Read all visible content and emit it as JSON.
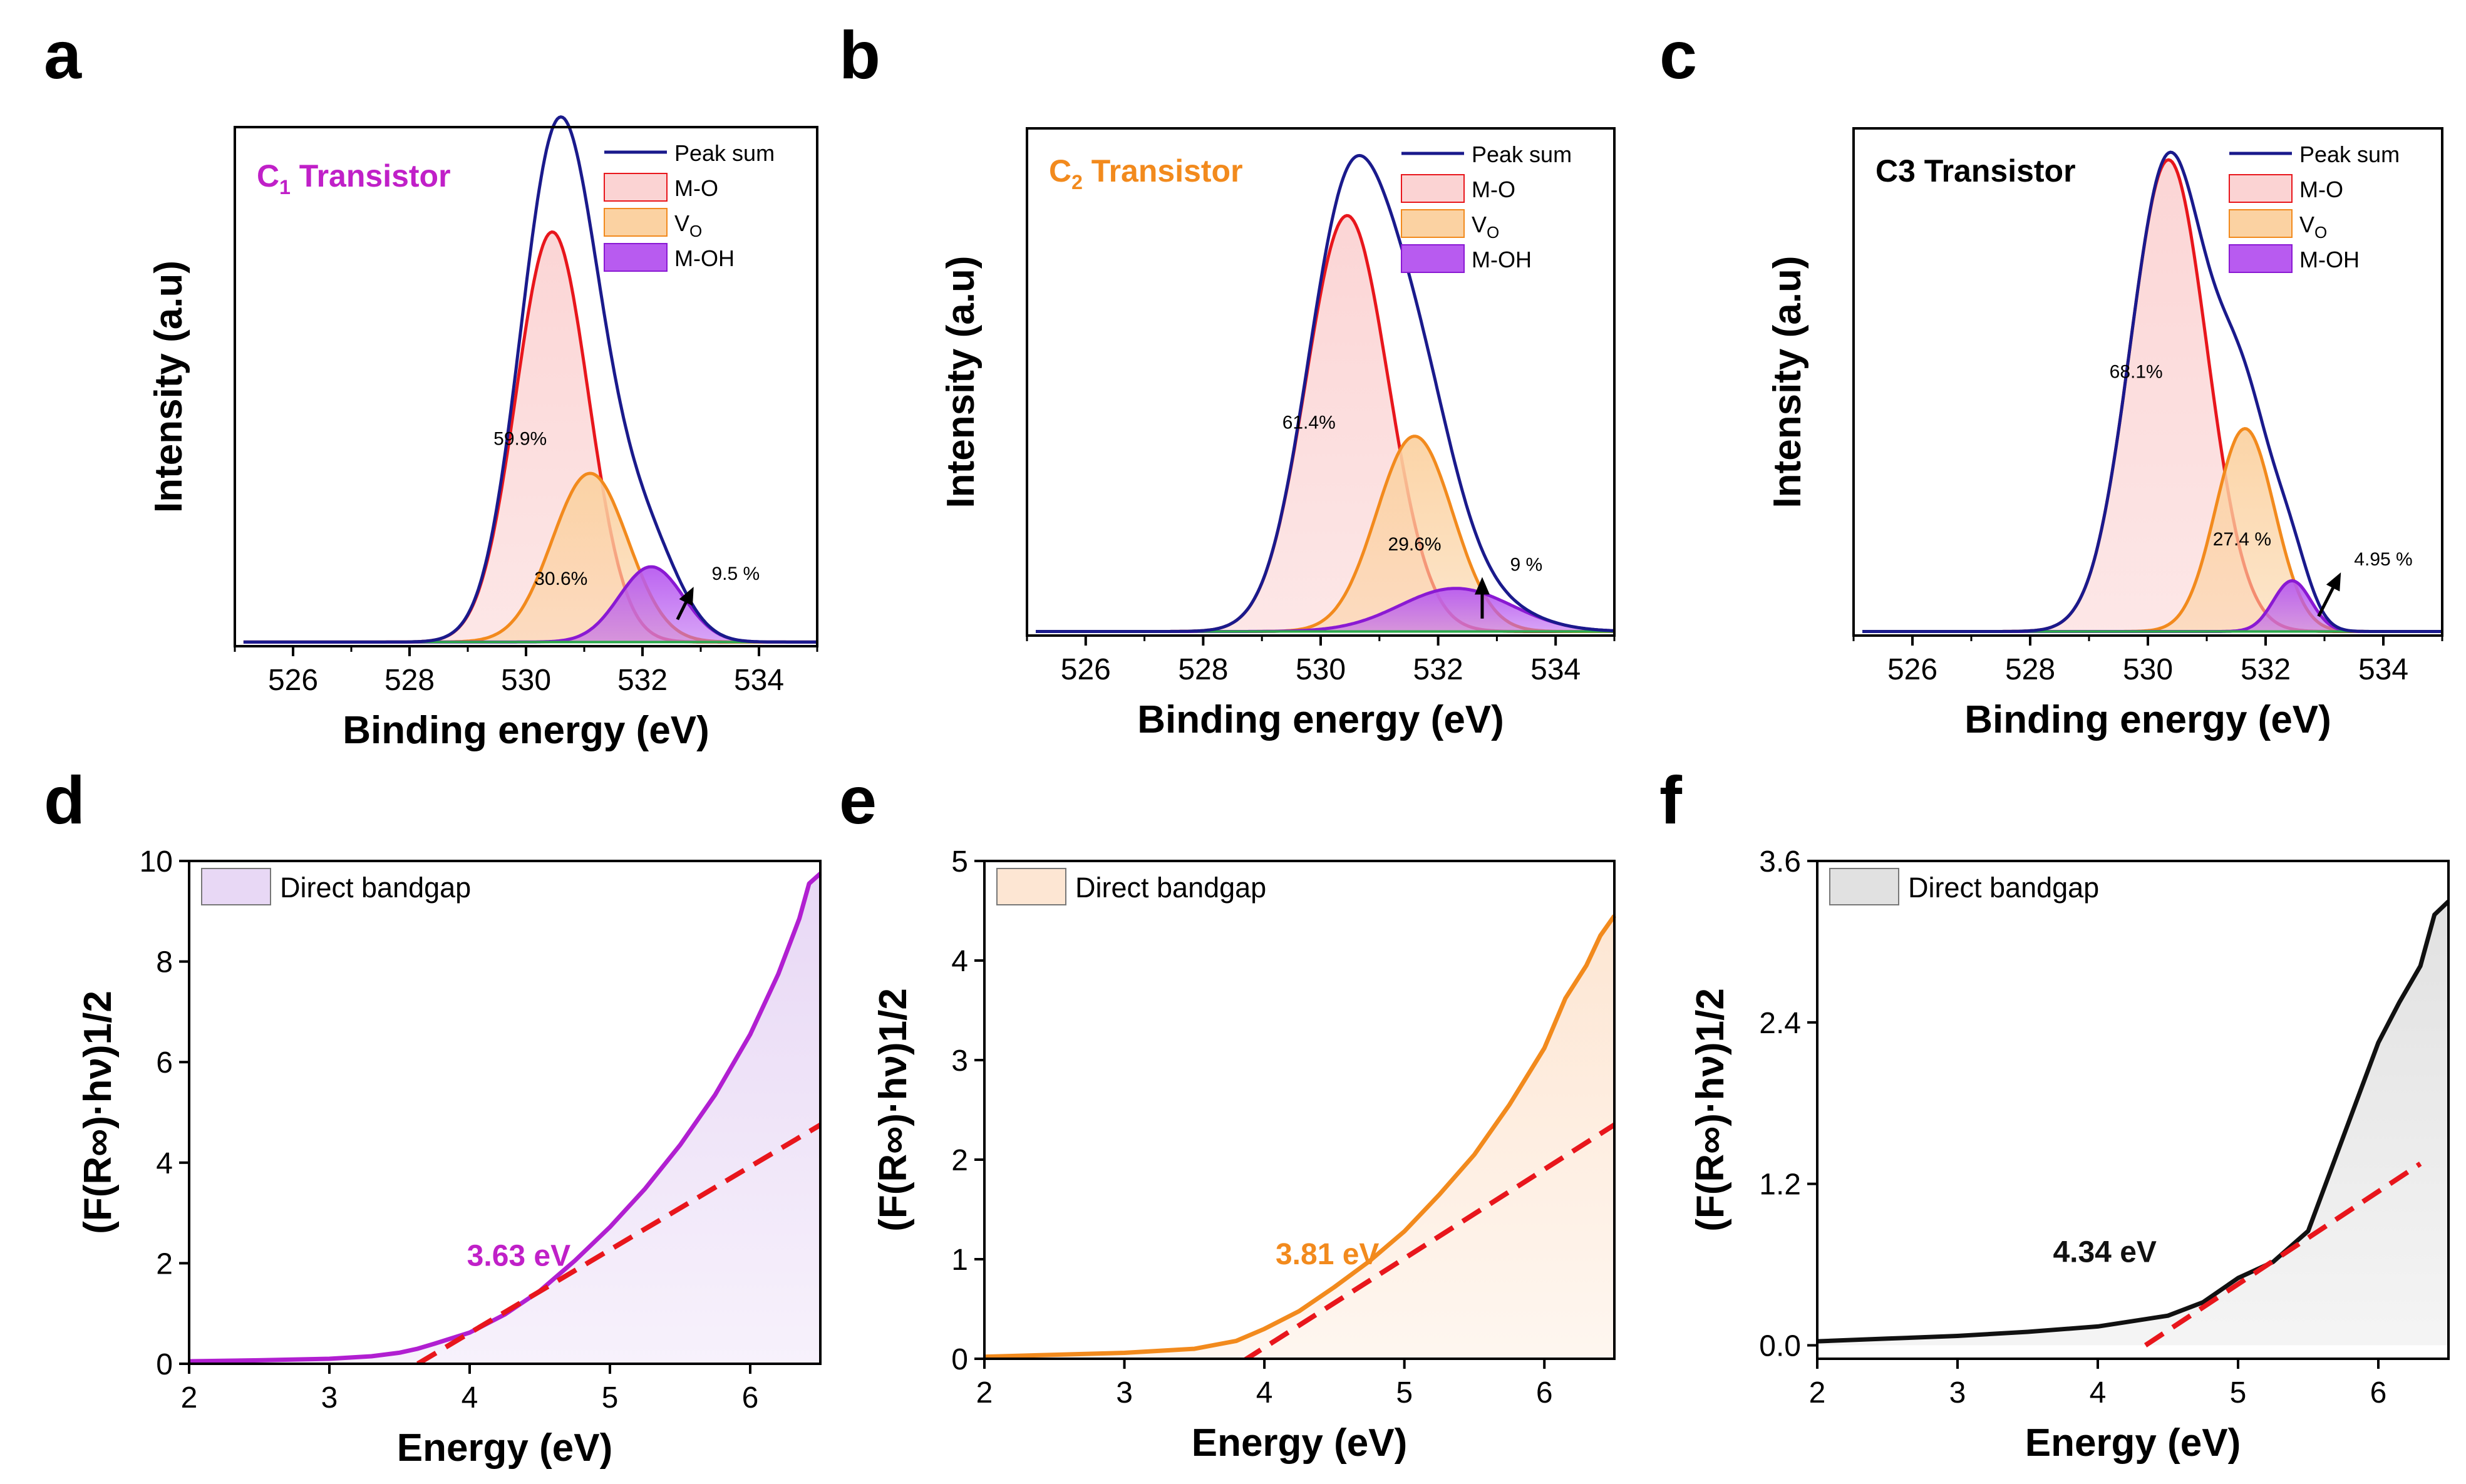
{
  "chart_data": [
    {
      "panel": "a",
      "type": "line",
      "title": "C",
      "title_sub": "1",
      "title_rest": " Transistor",
      "title_color": "#c020c8",
      "xlabel": "Binding energy (eV)",
      "ylabel": "Intensity (a.u)",
      "xlim": [
        525,
        535
      ],
      "ylim": [
        0,
        1.0
      ],
      "xticks": [
        526,
        528,
        530,
        532,
        534
      ],
      "components": [
        {
          "name": "M-O",
          "center": 530.45,
          "sigma": 0.62,
          "amp": 0.79,
          "color": "#e8161c",
          "fill": "#fbd3d3",
          "percent_label": "59.9%",
          "label_x": 529.9,
          "label_y": 0.38
        },
        {
          "name": "V",
          "sub": "O",
          "center": 531.1,
          "sigma": 0.65,
          "amp": 0.325,
          "color": "#f28a1d",
          "fill": "#fbd2a2",
          "percent_label": "30.6%",
          "label_x": 530.6,
          "label_y": 0.11
        },
        {
          "name": "M-OH",
          "center": 532.15,
          "sigma": 0.55,
          "amp": 0.145,
          "color": "#8a19d3",
          "fill": "#b85bf0",
          "percent_label": "9.5 %",
          "label_x": 533.6,
          "label_y": 0.12
        }
      ],
      "legend": [
        "Peak sum",
        "M-O",
        "V",
        "M-OH"
      ],
      "legend_sub": {
        "V": "O"
      }
    },
    {
      "panel": "b",
      "type": "line",
      "title": "C",
      "title_sub": "2",
      "title_rest": " Transistor",
      "title_color": "#f28a1d",
      "xlabel": "Binding energy (eV)",
      "ylabel": "Intensity (a.u)",
      "xlim": [
        525,
        535
      ],
      "ylim": [
        0,
        1.0
      ],
      "xticks": [
        526,
        528,
        530,
        532,
        534
      ],
      "components": [
        {
          "name": "M-O",
          "center": 530.45,
          "sigma": 0.7,
          "amp": 0.82,
          "color": "#e8161c",
          "fill": "#fbd3d3",
          "percent_label": "61.4%",
          "label_x": 529.8,
          "label_y": 0.4
        },
        {
          "name": "V",
          "sub": "O",
          "center": 531.6,
          "sigma": 0.65,
          "amp": 0.385,
          "color": "#f28a1d",
          "fill": "#fbd2a2",
          "percent_label": "29.6%",
          "label_x": 531.6,
          "label_y": 0.16
        },
        {
          "name": "M-OH",
          "center": 532.3,
          "sigma": 0.95,
          "amp": 0.085,
          "color": "#8a19d3",
          "fill": "#b85bf0",
          "percent_label": "9 %",
          "label_x": 533.5,
          "label_y": 0.12
        }
      ],
      "legend": [
        "Peak sum",
        "M-O",
        "V",
        "M-OH"
      ],
      "legend_sub": {
        "V": "O"
      }
    },
    {
      "panel": "c",
      "type": "line",
      "title": "C3 Transistor",
      "title_sub": "",
      "title_rest": "",
      "title_color": "#000000",
      "xlabel": "Binding energy (eV)",
      "ylabel": "Intensity (a.u)",
      "xlim": [
        525,
        535
      ],
      "ylim": [
        0,
        1.0
      ],
      "xticks": [
        526,
        528,
        530,
        532,
        534
      ],
      "components": [
        {
          "name": "M-O",
          "center": 530.35,
          "sigma": 0.65,
          "amp": 0.93,
          "color": "#e8161c",
          "fill": "#fbd3d3",
          "percent_label": "68.1%",
          "label_x": 529.8,
          "label_y": 0.5
        },
        {
          "name": "V",
          "sub": "O",
          "center": 531.65,
          "sigma": 0.5,
          "amp": 0.4,
          "color": "#f28a1d",
          "fill": "#fbd2a2",
          "percent_label": "27.4 %",
          "label_x": 531.6,
          "label_y": 0.17
        },
        {
          "name": "M-OH",
          "center": 532.45,
          "sigma": 0.32,
          "amp": 0.1,
          "color": "#8a19d3",
          "fill": "#b85bf0",
          "percent_label": "4.95 %",
          "label_x": 534.0,
          "label_y": 0.13
        }
      ],
      "legend": [
        "Peak sum",
        "M-O",
        "V",
        "M-OH"
      ],
      "legend_sub": {
        "V": "O"
      }
    },
    {
      "panel": "d",
      "type": "area",
      "xlabel": "Energy (eV)",
      "ylabel": "(F(R∞)·hν)1/2",
      "xlim": [
        2,
        6.5
      ],
      "ylim": [
        0,
        10
      ],
      "xticks": [
        2,
        3,
        4,
        5,
        6
      ],
      "yticks": [
        0,
        2,
        4,
        6,
        8,
        10
      ],
      "ytick_labels": [
        "0",
        "2",
        "4",
        "6",
        "8",
        "10"
      ],
      "color": "#b11fd1",
      "fill": "#e8d8f5",
      "legend": "Direct bandgap",
      "bandgap_label": "3.63 eV",
      "bandgap_color": "#c020c8",
      "label_at": [
        4.35,
        1.95
      ],
      "x": [
        2.0,
        2.5,
        3.0,
        3.3,
        3.5,
        3.63,
        3.75,
        4.0,
        4.25,
        4.5,
        4.75,
        5.0,
        5.25,
        5.5,
        5.75,
        6.0,
        6.2,
        6.35,
        6.42,
        6.5
      ],
      "y": [
        0.05,
        0.07,
        0.1,
        0.15,
        0.22,
        0.3,
        0.4,
        0.62,
        0.98,
        1.45,
        2.05,
        2.72,
        3.48,
        4.35,
        5.35,
        6.55,
        7.75,
        8.85,
        9.55,
        9.75
      ],
      "fit_line": {
        "x": [
          3.63,
          6.5
        ],
        "y": [
          0.0,
          4.75
        ]
      }
    },
    {
      "panel": "e",
      "type": "area",
      "xlabel": "Energy (eV)",
      "ylabel": "(F(R∞)·hν)1/2",
      "xlim": [
        2,
        6.5
      ],
      "ylim": [
        0,
        5
      ],
      "xticks": [
        2,
        3,
        4,
        5,
        6
      ],
      "yticks": [
        0,
        1,
        2,
        3,
        4,
        5
      ],
      "ytick_labels": [
        "0",
        "1",
        "2",
        "3",
        "4",
        "5"
      ],
      "color": "#f28a1d",
      "fill": "#fde6d3",
      "legend": "Direct bandgap",
      "bandgap_label": "3.81 eV",
      "bandgap_color": "#f28a1d",
      "label_at": [
        4.45,
        0.95
      ],
      "x": [
        2.0,
        2.5,
        3.0,
        3.5,
        3.8,
        4.0,
        4.25,
        4.5,
        4.75,
        5.0,
        5.25,
        5.5,
        5.75,
        6.0,
        6.15,
        6.3,
        6.4,
        6.5
      ],
      "y": [
        0.02,
        0.04,
        0.06,
        0.1,
        0.18,
        0.3,
        0.48,
        0.72,
        0.98,
        1.28,
        1.65,
        2.05,
        2.55,
        3.12,
        3.62,
        3.95,
        4.25,
        4.45
      ],
      "fit_line": {
        "x": [
          3.65,
          6.5
        ],
        "y": [
          -0.2,
          2.35
        ]
      }
    },
    {
      "panel": "f",
      "type": "area",
      "xlabel": "Energy (eV)",
      "ylabel": "(F(R∞)·hν)1/2",
      "xlim": [
        2,
        6.5
      ],
      "ylim": [
        -0.1,
        3.6
      ],
      "xticks": [
        2,
        3,
        4,
        5,
        6
      ],
      "yticks": [
        0.0,
        1.2,
        2.4,
        3.6
      ],
      "ytick_labels": [
        "0.0",
        "1.2",
        "2.4",
        "3.6"
      ],
      "color": "#111111",
      "fill": "#e1e1e1",
      "legend": "Direct bandgap",
      "bandgap_label": "4.34 eV",
      "bandgap_color": "#111111",
      "label_at": [
        4.05,
        0.62
      ],
      "x": [
        2.0,
        2.5,
        3.0,
        3.5,
        4.0,
        4.5,
        4.75,
        5.0,
        5.25,
        5.5,
        5.75,
        6.0,
        6.15,
        6.3,
        6.4,
        6.5
      ],
      "y": [
        0.03,
        0.05,
        0.07,
        0.1,
        0.14,
        0.22,
        0.32,
        0.5,
        0.62,
        0.85,
        1.55,
        2.25,
        2.55,
        2.82,
        3.2,
        3.3
      ],
      "fit_line": {
        "x": [
          4.34,
          6.3
        ],
        "y": [
          0.0,
          1.35
        ]
      }
    }
  ],
  "panel_labels": [
    "a",
    "b",
    "c",
    "d",
    "e",
    "f"
  ],
  "colors": {
    "peak_sum": "#1a1a8c",
    "fit_line": "#e8161c",
    "axis": "#000000"
  }
}
